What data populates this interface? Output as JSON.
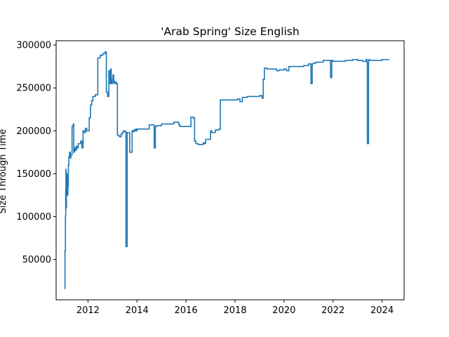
{
  "chart_data": {
    "type": "line",
    "title": "'Arab Spring' Size English",
    "xlabel": "",
    "ylabel": "Size Through Time",
    "xlim": [
      2010.7,
      2024.9
    ],
    "ylim": [
      3000,
      305000
    ],
    "xticks": [
      2012,
      2014,
      2016,
      2018,
      2020,
      2022,
      2024
    ],
    "yticks": [
      50000,
      100000,
      150000,
      200000,
      250000,
      300000
    ],
    "grid": false,
    "legend": "none",
    "series_color": "#1f77b4",
    "series": [
      {
        "x": [
          2011.05,
          2011.06,
          2011.08,
          2011.09,
          2011.1,
          2011.11,
          2011.12,
          2011.13,
          2011.14,
          2011.15,
          2011.16,
          2011.17,
          2011.18,
          2011.19,
          2011.2,
          2011.22,
          2011.25,
          2011.28,
          2011.3,
          2011.35,
          2011.4,
          2011.42,
          2011.45,
          2011.48,
          2011.5,
          2011.52,
          2011.55,
          2011.6,
          2011.7,
          2011.75,
          2011.8,
          2011.85,
          2011.9,
          2011.95,
          2012.0,
          2012.05,
          2012.1,
          2012.15,
          2012.2,
          2012.3,
          2012.4,
          2012.5,
          2012.6,
          2012.7,
          2012.75,
          2012.8,
          2012.85,
          2012.9,
          2012.93,
          2012.95,
          2012.97,
          2013.0,
          2013.02,
          2013.05,
          2013.08,
          2013.1,
          2013.15,
          2013.2,
          2013.25,
          2013.3,
          2013.35,
          2013.4,
          2013.45,
          2013.5,
          2013.55,
          2013.6,
          2013.7,
          2013.8,
          2013.85,
          2013.88,
          2013.9,
          2013.92,
          2013.95,
          2013.98,
          2014.0,
          2014.5,
          2014.7,
          2014.75,
          2014.8,
          2015.0,
          2015.5,
          2015.7,
          2015.75,
          2016.0,
          2016.2,
          2016.3,
          2016.35,
          2016.4,
          2016.5,
          2016.7,
          2016.75,
          2016.8,
          2017.0,
          2017.05,
          2017.2,
          2017.35,
          2017.4,
          2017.8,
          2018.0,
          2018.1,
          2018.2,
          2018.3,
          2018.5,
          2018.8,
          2019.0,
          2019.1,
          2019.15,
          2019.2,
          2019.3,
          2019.5,
          2019.7,
          2019.8,
          2020.0,
          2020.1,
          2020.2,
          2020.5,
          2020.8,
          2021.0,
          2021.1,
          2021.15,
          2021.2,
          2021.3,
          2021.5,
          2021.6,
          2021.9,
          2021.95,
          2022.0,
          2022.5,
          2022.8,
          2023.0,
          2023.2,
          2023.35,
          2023.38,
          2023.4,
          2023.45,
          2023.5,
          2023.8,
          2024.0,
          2024.3
        ],
        "y": [
          16000,
          60000,
          100000,
          130000,
          155000,
          110000,
          145000,
          125000,
          150000,
          130000,
          140000,
          125000,
          145000,
          135000,
          160000,
          170000,
          175000,
          168000,
          172000,
          205000,
          208000,
          175000,
          180000,
          178000,
          177000,
          182000,
          180000,
          185000,
          188000,
          180000,
          200000,
          198000,
          203000,
          200000,
          200000,
          215000,
          230000,
          235000,
          240000,
          242000,
          285000,
          288000,
          290000,
          292000,
          245000,
          240000,
          270000,
          255000,
          272000,
          260000,
          255000,
          256000,
          265000,
          258000,
          255000,
          257000,
          255000,
          195000,
          194000,
          193000,
          196000,
          198000,
          200000,
          199000,
          65000,
          198000,
          175000,
          200000,
          199000,
          201000,
          200000,
          200000,
          202000,
          200000,
          202000,
          207000,
          180000,
          205000,
          206000,
          208000,
          210000,
          207000,
          205000,
          205000,
          216000,
          215000,
          188000,
          185000,
          184000,
          186000,
          185000,
          190000,
          200000,
          198000,
          201000,
          202000,
          236000,
          236000,
          236000,
          237000,
          234000,
          239000,
          240000,
          240000,
          241000,
          238000,
          260000,
          273000,
          272000,
          272000,
          270000,
          271000,
          272000,
          270000,
          275000,
          275000,
          276000,
          278000,
          255000,
          278000,
          279000,
          280000,
          280000,
          282000,
          262000,
          282000,
          281000,
          282000,
          283000,
          282000,
          281000,
          283000,
          280000,
          185000,
          283000,
          282000,
          282000,
          283000,
          283000
        ]
      }
    ]
  }
}
